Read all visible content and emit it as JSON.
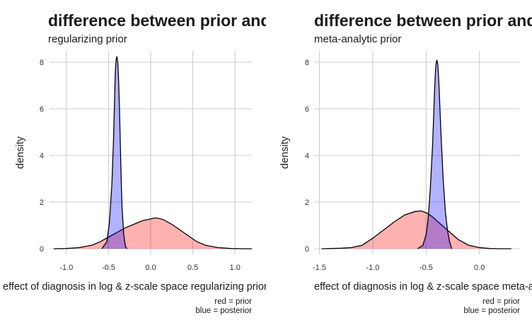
{
  "chart_data": [
    {
      "type": "area",
      "title": "difference between prior and posterior",
      "subtitle": "regularizing prior",
      "xlabel": "effect of diagnosis in log & z-scale space regularizing prior",
      "ylabel": "density",
      "caption_lines": [
        "red = prior",
        "blue = posterior"
      ],
      "xlim": [
        -1.2,
        1.2
      ],
      "ylim": [
        0,
        8.3
      ],
      "x_ticks": [
        -1.0,
        -0.5,
        0.0,
        0.5,
        1.0
      ],
      "x_tick_labels": [
        "-1.0",
        "-0.5",
        "0.0",
        "0.5",
        "1.0"
      ],
      "y_ticks": [
        0,
        2,
        4,
        6,
        8
      ],
      "y_tick_labels": [
        "0",
        "2",
        "4",
        "6",
        "8"
      ],
      "grid": true,
      "legend": "none",
      "series": [
        {
          "color": "#ff0000",
          "x": [
            -1.15,
            -1.0,
            -0.85,
            -0.7,
            -0.6,
            -0.5,
            -0.4,
            -0.3,
            -0.2,
            -0.1,
            0.0,
            0.05,
            0.1,
            0.15,
            0.25,
            0.35,
            0.45,
            0.55,
            0.65,
            0.8,
            0.95,
            1.1,
            1.2
          ],
          "y": [
            0.0,
            0.01,
            0.05,
            0.15,
            0.3,
            0.5,
            0.7,
            0.9,
            1.05,
            1.2,
            1.28,
            1.32,
            1.3,
            1.25,
            1.05,
            0.8,
            0.55,
            0.3,
            0.15,
            0.05,
            0.01,
            0.0,
            0.0
          ]
        },
        {
          "color": "#0000ff",
          "x": [
            -0.58,
            -0.52,
            -0.49,
            -0.46,
            -0.44,
            -0.43,
            -0.42,
            -0.41,
            -0.4,
            -0.39,
            -0.38,
            -0.37,
            -0.36,
            -0.35,
            -0.34,
            -0.32,
            -0.3,
            -0.28
          ],
          "y": [
            0.0,
            0.3,
            1.1,
            2.8,
            4.8,
            6.2,
            7.5,
            8.1,
            8.25,
            8.0,
            7.2,
            6.0,
            4.5,
            3.0,
            1.8,
            0.6,
            0.1,
            0.0
          ]
        }
      ]
    },
    {
      "type": "area",
      "title": "difference between prior and posterior",
      "subtitle": "meta-analytic prior",
      "xlabel": "effect of diagnosis in log & z-scale space meta-analytic prior",
      "ylabel": "density",
      "caption_lines": [
        "red = prior",
        "blue = posterior"
      ],
      "xlim": [
        -1.55,
        0.38
      ],
      "ylim": [
        0,
        8.3
      ],
      "x_ticks": [
        -1.5,
        -1.0,
        -0.5,
        0.0
      ],
      "x_tick_labels": [
        "-1.5",
        "-1.0",
        "-0.5",
        "0.0"
      ],
      "y_ticks": [
        0,
        2,
        4,
        6,
        8
      ],
      "y_tick_labels": [
        "0",
        "2",
        "4",
        "6",
        "8"
      ],
      "grid": true,
      "legend": "none",
      "series": [
        {
          "color": "#ff0000",
          "x": [
            -1.48,
            -1.3,
            -1.2,
            -1.1,
            -1.0,
            -0.9,
            -0.8,
            -0.7,
            -0.6,
            -0.55,
            -0.5,
            -0.45,
            -0.4,
            -0.3,
            -0.2,
            -0.1,
            0.0,
            0.1,
            0.2,
            0.3
          ],
          "y": [
            0.0,
            0.02,
            0.05,
            0.15,
            0.45,
            0.8,
            1.15,
            1.45,
            1.6,
            1.62,
            1.55,
            1.4,
            1.2,
            0.8,
            0.4,
            0.15,
            0.05,
            0.01,
            0.0,
            0.0
          ]
        },
        {
          "color": "#0000ff",
          "x": [
            -0.58,
            -0.53,
            -0.5,
            -0.48,
            -0.46,
            -0.44,
            -0.43,
            -0.42,
            -0.41,
            -0.4,
            -0.39,
            -0.38,
            -0.37,
            -0.36,
            -0.34,
            -0.32,
            -0.3,
            -0.28,
            -0.26
          ],
          "y": [
            0.0,
            0.15,
            0.6,
            1.3,
            2.6,
            4.4,
            5.6,
            6.9,
            7.8,
            8.1,
            7.9,
            7.1,
            6.0,
            4.9,
            3.0,
            1.6,
            0.8,
            0.3,
            0.0
          ]
        }
      ]
    }
  ]
}
